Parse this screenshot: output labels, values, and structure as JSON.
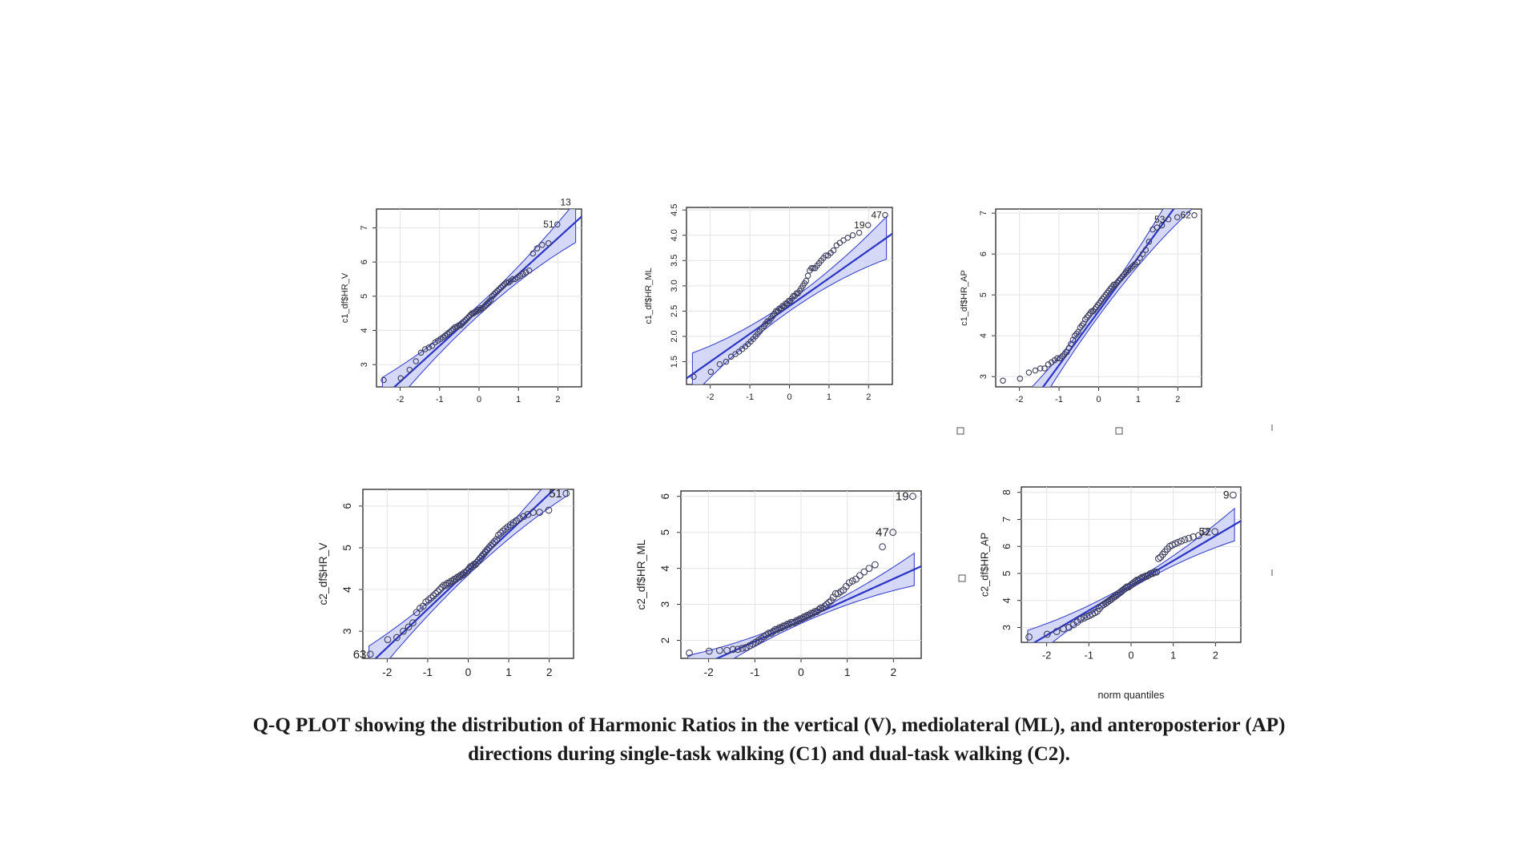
{
  "caption": "Q-Q PLOT showing the distribution of Harmonic Ratios in the vertical (V), mediolateral (ML), and anteroposterior (AP) directions during single-task walking (C1) and dual-task walking (C2).",
  "chart_data": [
    {
      "type": "scatter",
      "ylabel": "c1_df$HR_V",
      "xlabel": "",
      "xlim": [
        -2.6,
        2.6
      ],
      "ylim": [
        2.35,
        7.55
      ],
      "xticks": [
        -2,
        -1,
        0,
        1,
        2
      ],
      "yticks": [
        3,
        4,
        5,
        6,
        7
      ],
      "n": 64,
      "grid": true,
      "line": {
        "intercept": 4.6,
        "slope": 1.05
      },
      "band_width": {
        "center": 0.15,
        "tail": 0.6
      },
      "points_y": [
        2.55,
        2.6,
        2.85,
        3.1,
        3.35,
        3.45,
        3.5,
        3.55,
        3.65,
        3.7,
        3.75,
        3.8,
        3.85,
        3.9,
        3.95,
        4.0,
        4.05,
        4.1,
        4.1,
        4.15,
        4.15,
        4.2,
        4.25,
        4.3,
        4.35,
        4.4,
        4.45,
        4.5,
        4.5,
        4.55,
        4.55,
        4.6,
        4.6,
        4.65,
        4.65,
        4.7,
        4.75,
        4.8,
        4.85,
        4.9,
        5.0,
        5.05,
        5.1,
        5.15,
        5.2,
        5.25,
        5.3,
        5.35,
        5.4,
        5.4,
        5.45,
        5.5,
        5.5,
        5.55,
        5.6,
        5.65,
        5.7,
        5.75,
        6.25,
        6.4,
        6.5,
        6.55,
        7.1,
        7.75
      ],
      "point_labels": [
        {
          "index": 63,
          "text": "13"
        },
        {
          "index": 62,
          "text": "51"
        }
      ]
    },
    {
      "type": "scatter",
      "ylabel": "c1_df$HR_ML",
      "xlabel": "",
      "xlim": [
        -2.6,
        2.6
      ],
      "ylim": [
        1.05,
        4.55
      ],
      "xticks": [
        -2,
        -1,
        0,
        1,
        2
      ],
      "yticks": [
        1.5,
        2.0,
        2.5,
        3.0,
        3.5,
        4.0,
        4.5
      ],
      "n": 64,
      "grid": true,
      "line": {
        "intercept": 2.6,
        "slope": 0.55
      },
      "band_width": {
        "center": 0.1,
        "tail": 0.42
      },
      "points_y": [
        1.2,
        1.3,
        1.45,
        1.5,
        1.6,
        1.65,
        1.7,
        1.75,
        1.8,
        1.85,
        1.9,
        1.95,
        2.0,
        2.05,
        2.1,
        2.15,
        2.2,
        2.25,
        2.3,
        2.3,
        2.35,
        2.4,
        2.45,
        2.5,
        2.5,
        2.55,
        2.55,
        2.6,
        2.6,
        2.65,
        2.65,
        2.7,
        2.7,
        2.75,
        2.8,
        2.8,
        2.85,
        2.85,
        2.9,
        2.95,
        3.0,
        3.05,
        3.1,
        3.2,
        3.3,
        3.35,
        3.35,
        3.35,
        3.4,
        3.45,
        3.5,
        3.55,
        3.6,
        3.6,
        3.65,
        3.7,
        3.8,
        3.85,
        3.9,
        3.95,
        4.0,
        4.05,
        4.2,
        4.4
      ],
      "point_labels": [
        {
          "index": 63,
          "text": "47"
        },
        {
          "index": 62,
          "text": "19"
        }
      ]
    },
    {
      "type": "scatter",
      "ylabel": "c1_df$HR_AP",
      "xlabel": "",
      "xlim": [
        -2.6,
        2.6
      ],
      "ylim": [
        2.75,
        7.1
      ],
      "xticks": [
        -2,
        -1,
        0,
        1,
        2
      ],
      "yticks": [
        3,
        4,
        5,
        6,
        7
      ],
      "n": 64,
      "grid": true,
      "line": {
        "intercept": 4.6,
        "slope": 1.32
      },
      "band_width": {
        "center": 0.12,
        "tail": 0.65
      },
      "points_y": [
        2.9,
        2.95,
        3.1,
        3.15,
        3.2,
        3.2,
        3.3,
        3.35,
        3.4,
        3.45,
        3.45,
        3.5,
        3.55,
        3.6,
        3.7,
        3.8,
        3.9,
        4.0,
        4.05,
        4.1,
        4.2,
        4.25,
        4.3,
        4.4,
        4.45,
        4.5,
        4.55,
        4.6,
        4.6,
        4.65,
        4.7,
        4.75,
        4.8,
        4.85,
        4.9,
        4.95,
        5.0,
        5.05,
        5.1,
        5.15,
        5.2,
        5.25,
        5.25,
        5.3,
        5.35,
        5.4,
        5.45,
        5.5,
        5.55,
        5.6,
        5.65,
        5.7,
        5.75,
        5.8,
        5.9,
        6.0,
        6.1,
        6.3,
        6.6,
        6.65,
        6.7,
        6.85,
        6.9,
        6.95
      ],
      "point_labels": [
        {
          "index": 61,
          "text": "53"
        },
        {
          "index": 63,
          "text": "62"
        }
      ]
    },
    {
      "type": "scatter",
      "ylabel": "c2_df$HR_V",
      "xlabel": "",
      "xlim": [
        -2.6,
        2.6
      ],
      "ylim": [
        2.35,
        6.4
      ],
      "xticks": [
        -2,
        -1,
        0,
        1,
        2
      ],
      "yticks": [
        3,
        4,
        5,
        6
      ],
      "n": 64,
      "grid": true,
      "line": {
        "intercept": 4.45,
        "slope": 0.92
      },
      "band_width": {
        "center": 0.1,
        "tail": 0.45
      },
      "points_y": [
        2.45,
        2.8,
        2.85,
        3.0,
        3.1,
        3.2,
        3.45,
        3.55,
        3.6,
        3.7,
        3.75,
        3.8,
        3.85,
        3.9,
        3.95,
        4.0,
        4.05,
        4.1,
        4.1,
        4.15,
        4.15,
        4.2,
        4.2,
        4.25,
        4.25,
        4.3,
        4.3,
        4.35,
        4.35,
        4.4,
        4.4,
        4.45,
        4.5,
        4.55,
        4.55,
        4.6,
        4.6,
        4.65,
        4.7,
        4.75,
        4.8,
        4.85,
        4.9,
        4.95,
        5.0,
        5.05,
        5.1,
        5.15,
        5.2,
        5.3,
        5.35,
        5.4,
        5.45,
        5.5,
        5.55,
        5.6,
        5.65,
        5.7,
        5.75,
        5.8,
        5.85,
        5.85,
        5.9,
        6.3
      ],
      "point_labels": [
        {
          "index": 63,
          "text": "51"
        },
        {
          "index": 0,
          "text": "63"
        }
      ]
    },
    {
      "type": "scatter",
      "ylabel": "c2_df$HR_ML",
      "xlabel": "",
      "xlim": [
        -2.6,
        2.6
      ],
      "ylim": [
        1.5,
        6.15
      ],
      "xticks": [
        -2,
        -1,
        0,
        1,
        2
      ],
      "yticks": [
        2,
        3,
        4,
        5,
        6
      ],
      "n": 64,
      "grid": true,
      "line": {
        "intercept": 2.55,
        "slope": 0.58
      },
      "band_width": {
        "center": 0.08,
        "tail": 0.45
      },
      "points_y": [
        1.65,
        1.7,
        1.72,
        1.72,
        1.75,
        1.75,
        1.78,
        1.8,
        1.85,
        1.9,
        1.95,
        2.0,
        2.05,
        2.1,
        2.15,
        2.2,
        2.2,
        2.25,
        2.3,
        2.3,
        2.35,
        2.35,
        2.4,
        2.4,
        2.45,
        2.45,
        2.5,
        2.5,
        2.5,
        2.55,
        2.55,
        2.6,
        2.6,
        2.65,
        2.65,
        2.7,
        2.7,
        2.75,
        2.75,
        2.8,
        2.8,
        2.85,
        2.9,
        2.9,
        2.95,
        3.0,
        3.05,
        3.1,
        3.2,
        3.3,
        3.3,
        3.35,
        3.4,
        3.5,
        3.6,
        3.65,
        3.7,
        3.8,
        3.9,
        4.0,
        4.1,
        4.6,
        5.0,
        6.0
      ],
      "point_labels": [
        {
          "index": 63,
          "text": "19"
        },
        {
          "index": 62,
          "text": "47"
        }
      ]
    },
    {
      "type": "scatter",
      "ylabel": "c2_df$HR_AP",
      "xlabel": "norm quantiles",
      "xlim": [
        -2.6,
        2.6
      ],
      "ylim": [
        2.45,
        8.2
      ],
      "xticks": [
        -2,
        -1,
        0,
        1,
        2
      ],
      "yticks": [
        3,
        4,
        5,
        6,
        7,
        8
      ],
      "n": 64,
      "grid": true,
      "line": {
        "intercept": 4.55,
        "slope": 0.92
      },
      "band_width": {
        "center": 0.1,
        "tail": 0.6
      },
      "points_y": [
        2.65,
        2.75,
        2.85,
        2.95,
        3.0,
        3.1,
        3.2,
        3.3,
        3.35,
        3.4,
        3.45,
        3.5,
        3.55,
        3.6,
        3.7,
        3.8,
        3.85,
        3.9,
        3.95,
        4.0,
        4.05,
        4.1,
        4.15,
        4.2,
        4.25,
        4.3,
        4.35,
        4.4,
        4.45,
        4.5,
        4.5,
        4.55,
        4.6,
        4.65,
        4.7,
        4.75,
        4.75,
        4.8,
        4.85,
        4.85,
        4.9,
        4.9,
        4.95,
        5.0,
        5.0,
        5.05,
        5.05,
        5.55,
        5.6,
        5.7,
        5.8,
        5.9,
        6.0,
        6.05,
        6.1,
        6.15,
        6.2,
        6.25,
        6.3,
        6.35,
        6.4,
        6.55,
        6.55,
        7.9
      ],
      "point_labels": [
        {
          "index": 63,
          "text": "9"
        },
        {
          "index": 62,
          "text": "52"
        }
      ]
    }
  ]
}
